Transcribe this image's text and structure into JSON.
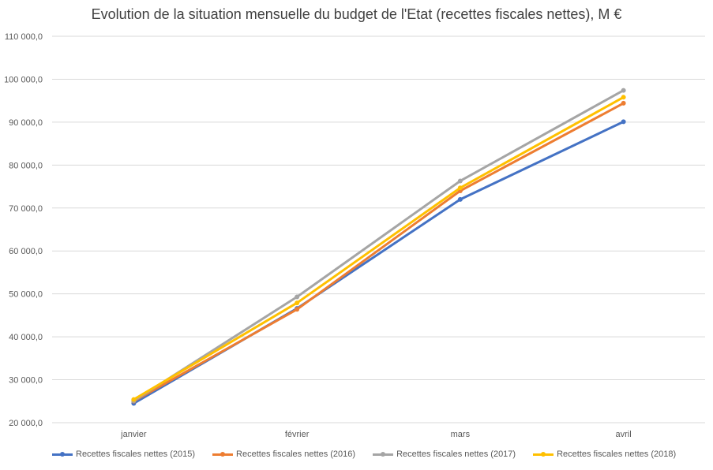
{
  "chart_data": {
    "type": "line",
    "title": "Evolution de la situation mensuelle du budget de l'Etat (recettes fiscales nettes), M €",
    "categories": [
      "janvier",
      "février",
      "mars",
      "avril"
    ],
    "ylim": [
      20000,
      110000
    ],
    "yticks": [
      20000,
      30000,
      40000,
      50000,
      60000,
      70000,
      80000,
      90000,
      100000,
      110000
    ],
    "ytick_labels": [
      "20 000,0",
      "30 000,0",
      "40 000,0",
      "50 000,0",
      "60 000,0",
      "70 000,0",
      "80 000,0",
      "90 000,0",
      "100 000,0",
      "110 000,0"
    ],
    "grid": true,
    "legend_position": "bottom",
    "series": [
      {
        "name": "Recettes fiscales nettes (2015)",
        "color": "#4472C4",
        "values": [
          24500,
          46600,
          72000,
          90100
        ]
      },
      {
        "name": "Recettes fiscales nettes (2016)",
        "color": "#ED7D31",
        "values": [
          25000,
          46400,
          74000,
          94400
        ]
      },
      {
        "name": "Recettes fiscales nettes (2017)",
        "color": "#A5A5A5",
        "values": [
          25100,
          49300,
          76300,
          97400
        ]
      },
      {
        "name": "Recettes fiscales nettes (2018)",
        "color": "#FFC000",
        "values": [
          25400,
          47900,
          74700,
          95800
        ]
      }
    ]
  }
}
